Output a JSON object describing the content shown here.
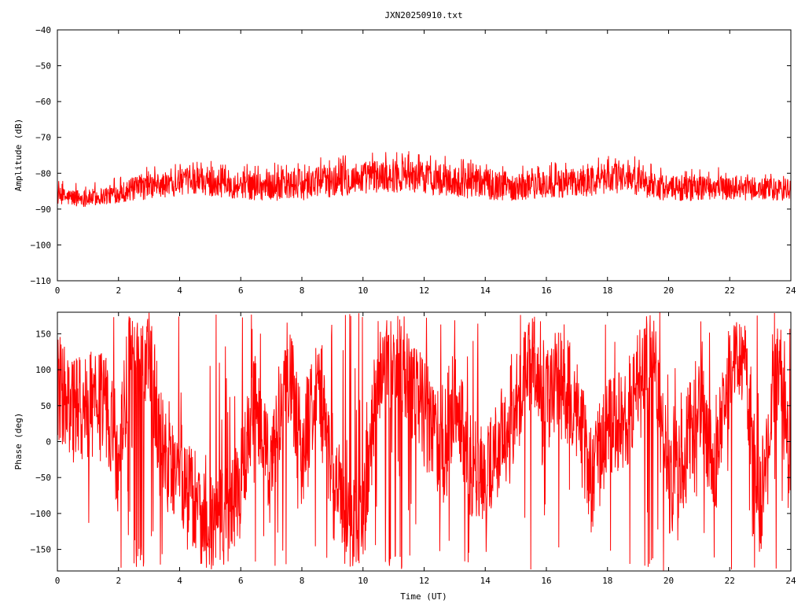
{
  "chart_data": [
    {
      "type": "line",
      "title": "JXN20250910.txt",
      "xlabel": "",
      "ylabel": "Amplitude (dB)",
      "xlim": [
        0,
        24
      ],
      "ylim": [
        -110,
        -40
      ],
      "xticks": [
        0,
        2,
        4,
        6,
        8,
        10,
        12,
        14,
        16,
        18,
        20,
        22,
        24
      ],
      "yticks": [
        -110,
        -100,
        -90,
        -80,
        -70,
        -60,
        -50,
        -40
      ],
      "grid": false,
      "color": "#ff0000",
      "series": [
        {
          "x": [
            0,
            0.5,
            1,
            1.5,
            2,
            2.5,
            3,
            3.5,
            4,
            4.5,
            5,
            5.5,
            6,
            6.5,
            7,
            7.5,
            8,
            8.5,
            9,
            9.5,
            10,
            10.5,
            11,
            11.5,
            12,
            12.5,
            13,
            13.5,
            14,
            14.5,
            15,
            15.5,
            16,
            16.5,
            17,
            17.5,
            18,
            18.5,
            19,
            19.5,
            20,
            20.5,
            21,
            21.5,
            22,
            22.5,
            23,
            23.5,
            24
          ],
          "mean": [
            -86.5,
            -86.8,
            -87,
            -86.3,
            -85.5,
            -84.5,
            -83.8,
            -83.3,
            -82.5,
            -82,
            -82.4,
            -83,
            -83.2,
            -83.5,
            -83.6,
            -83.4,
            -83.2,
            -82.6,
            -82.2,
            -81.7,
            -81.2,
            -80.8,
            -80.6,
            -80.9,
            -81.3,
            -81.8,
            -82.3,
            -82.8,
            -83.2,
            -83.5,
            -83.7,
            -83.5,
            -83.3,
            -83.1,
            -82.7,
            -82.1,
            -81.4,
            -81.1,
            -82.2,
            -83.4,
            -84.2,
            -84.4,
            -84.1,
            -83.9,
            -84,
            -84.2,
            -84.5,
            -84.7,
            -84.8
          ],
          "spread": [
            2.5,
            2.5,
            2.4,
            2.6,
            2.8,
            3.3,
            3.6,
            3.6,
            3.6,
            3.8,
            4.0,
            4.0,
            4.0,
            4.1,
            4.2,
            4.3,
            4.4,
            4.5,
            4.5,
            4.6,
            4.6,
            4.7,
            4.8,
            4.7,
            4.6,
            4.6,
            4.4,
            4.3,
            4.2,
            4.1,
            4.0,
            4.0,
            4.0,
            4.0,
            4.1,
            4.2,
            4.4,
            4.6,
            4.2,
            3.8,
            3.6,
            3.5,
            3.5,
            3.5,
            3.4,
            3.4,
            3.3,
            3.3,
            3.3
          ]
        }
      ]
    },
    {
      "type": "line",
      "title": "",
      "xlabel": "Time (UT)",
      "ylabel": "Phase (deg)",
      "xlim": [
        0,
        24
      ],
      "ylim": [
        -180,
        180
      ],
      "xticks": [
        0,
        2,
        4,
        6,
        8,
        10,
        12,
        14,
        16,
        18,
        20,
        22,
        24
      ],
      "yticks": [
        -150,
        -100,
        -50,
        0,
        50,
        100,
        150
      ],
      "grid": false,
      "color": "#ff0000",
      "series": [
        {
          "x": [
            0,
            0.5,
            1,
            1.5,
            2,
            2.5,
            3,
            3.5,
            4,
            4.5,
            5,
            5.5,
            6,
            6.5,
            7,
            7.5,
            8,
            8.5,
            9,
            9.5,
            10,
            10.5,
            11,
            11.5,
            12,
            12.5,
            13,
            13.5,
            14,
            14.5,
            15,
            15.5,
            16,
            16.5,
            17,
            17.5,
            18,
            18.5,
            19,
            19.5,
            20,
            20.5,
            21,
            21.5,
            22,
            22.5,
            23,
            23.5,
            24
          ],
          "center": [
            80,
            40,
            50,
            60,
            -20,
            160,
            120,
            -30,
            -40,
            -80,
            -120,
            -100,
            -60,
            60,
            -40,
            120,
            -20,
            100,
            -60,
            -120,
            -110,
            100,
            140,
            90,
            40,
            -10,
            60,
            -30,
            -60,
            0,
            50,
            110,
            60,
            90,
            40,
            -60,
            30,
            20,
            80,
            130,
            -60,
            -20,
            60,
            -40,
            90,
            110,
            -90,
            120,
            -40
          ]
        }
      ]
    }
  ]
}
